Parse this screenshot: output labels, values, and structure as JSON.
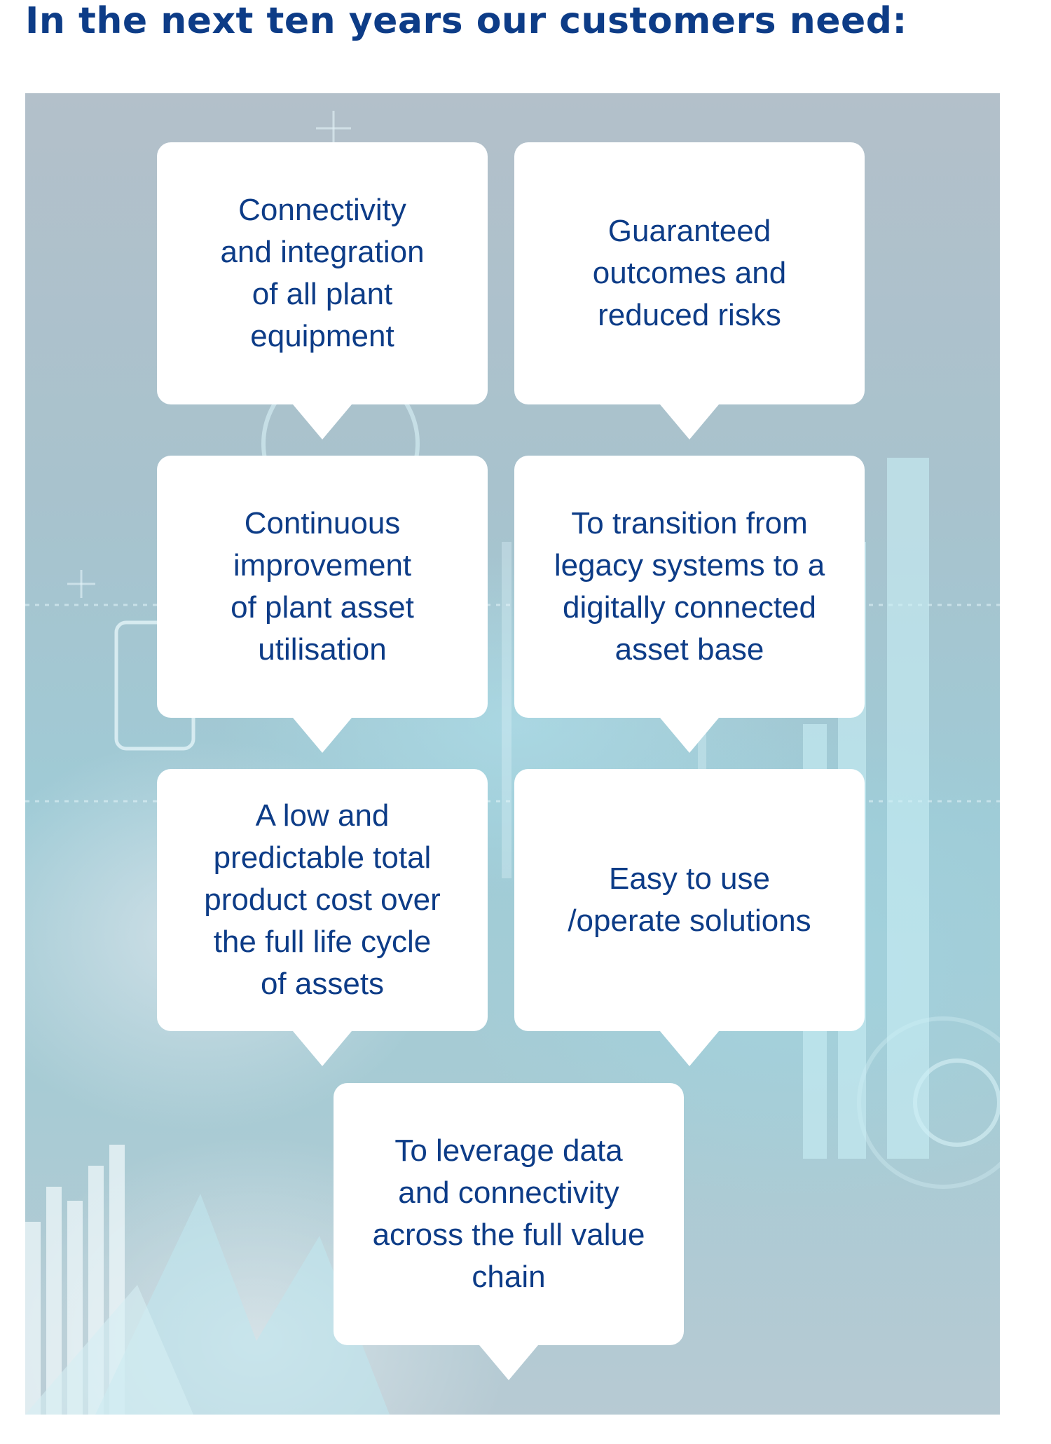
{
  "heading": "In the next ten years our customers need:",
  "needs": [
    {
      "text": "Connectivity\nand integration\nof all plant\nequipment"
    },
    {
      "text": "Guaranteed\noutcomes and\nreduced risks"
    },
    {
      "text": "Continuous\nimprovement\nof plant asset\nutilisation"
    },
    {
      "text": "To transition from\nlegacy systems to a\ndigitally connected\nasset base"
    },
    {
      "text": "A low and\npredictable total\nproduct cost over\nthe full life cycle\nof assets"
    },
    {
      "text": "Easy to use\n/operate solutions"
    },
    {
      "text": "To leverage data\nand connectivity\nacross the full value\nchain"
    }
  ],
  "colors": {
    "heading": "#0d3c87",
    "bubble_text": "#0d3c87",
    "bubble_fill": "#ffffff",
    "panel_base": "#a8c2cd"
  }
}
